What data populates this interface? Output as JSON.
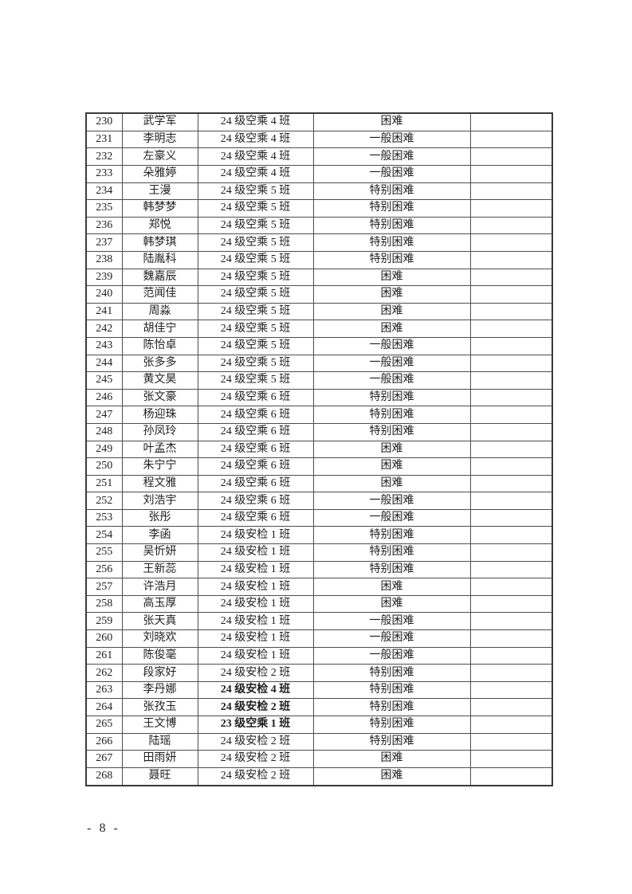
{
  "page": {
    "number_label": "- 8 -"
  },
  "table": {
    "rows": [
      {
        "num": "230",
        "name": "武学军",
        "cls": "24 级空乘 4 班",
        "level": "困难",
        "note": ""
      },
      {
        "num": "231",
        "name": "李明志",
        "cls": "24 级空乘 4 班",
        "level": "一般困难",
        "note": ""
      },
      {
        "num": "232",
        "name": "左豪义",
        "cls": "24 级空乘 4 班",
        "level": "一般困难",
        "note": ""
      },
      {
        "num": "233",
        "name": "朵雅婷",
        "cls": "24 级空乘 4 班",
        "level": "一般困难",
        "note": ""
      },
      {
        "num": "234",
        "name": "王漫",
        "cls": "24 级空乘 5 班",
        "level": "特别困难",
        "note": ""
      },
      {
        "num": "235",
        "name": "韩梦梦",
        "cls": "24 级空乘 5 班",
        "level": "特别困难",
        "note": ""
      },
      {
        "num": "236",
        "name": "郑悦",
        "cls": "24 级空乘 5 班",
        "level": "特别困难",
        "note": ""
      },
      {
        "num": "237",
        "name": "韩梦琪",
        "cls": "24 级空乘 5 班",
        "level": "特别困难",
        "note": ""
      },
      {
        "num": "238",
        "name": "陆胤科",
        "cls": "24 级空乘 5 班",
        "level": "特别困难",
        "note": ""
      },
      {
        "num": "239",
        "name": "魏嘉辰",
        "cls": "24 级空乘 5 班",
        "level": "困难",
        "note": ""
      },
      {
        "num": "240",
        "name": "范闻佳",
        "cls": "24 级空乘 5 班",
        "level": "困难",
        "note": ""
      },
      {
        "num": "241",
        "name": "周淼",
        "cls": "24 级空乘 5 班",
        "level": "困难",
        "note": ""
      },
      {
        "num": "242",
        "name": "胡佳宁",
        "cls": "24 级空乘 5 班",
        "level": "困难",
        "note": ""
      },
      {
        "num": "243",
        "name": "陈怡卓",
        "cls": "24 级空乘 5 班",
        "level": "一般困难",
        "note": ""
      },
      {
        "num": "244",
        "name": "张多多",
        "cls": "24 级空乘 5 班",
        "level": "一般困难",
        "note": ""
      },
      {
        "num": "245",
        "name": "黄文昊",
        "cls": "24 级空乘 5 班",
        "level": "一般困难",
        "note": ""
      },
      {
        "num": "246",
        "name": "张文豪",
        "cls": "24 级空乘 6 班",
        "level": "特别困难",
        "note": ""
      },
      {
        "num": "247",
        "name": "杨迎珠",
        "cls": "24 级空乘 6 班",
        "level": "特别困难",
        "note": ""
      },
      {
        "num": "248",
        "name": "孙凤玲",
        "cls": "24 级空乘 6 班",
        "level": "特别困难",
        "note": ""
      },
      {
        "num": "249",
        "name": "叶孟杰",
        "cls": "24 级空乘 6 班",
        "level": "困难",
        "note": ""
      },
      {
        "num": "250",
        "name": "朱宁宁",
        "cls": "24 级空乘 6 班",
        "level": "困难",
        "note": ""
      },
      {
        "num": "251",
        "name": "程文雅",
        "cls": "24 级空乘 6 班",
        "level": "困难",
        "note": ""
      },
      {
        "num": "252",
        "name": "刘浩宇",
        "cls": "24 级空乘 6 班",
        "level": "一般困难",
        "note": ""
      },
      {
        "num": "253",
        "name": "张彤",
        "cls": "24 级空乘 6 班",
        "level": "一般困难",
        "note": ""
      },
      {
        "num": "254",
        "name": "李函",
        "cls": "24 级安检 1 班",
        "level": "特别困难",
        "note": ""
      },
      {
        "num": "255",
        "name": "吴忻妍",
        "cls": "24 级安检 1 班",
        "level": "特别困难",
        "note": ""
      },
      {
        "num": "256",
        "name": "王新蕊",
        "cls": "24 级安检 1 班",
        "level": "特别困难",
        "note": ""
      },
      {
        "num": "257",
        "name": "许浩月",
        "cls": "24 级安检 1 班",
        "level": "困难",
        "note": ""
      },
      {
        "num": "258",
        "name": "高玉厚",
        "cls": "24 级安检 1 班",
        "level": "困难",
        "note": ""
      },
      {
        "num": "259",
        "name": "张天真",
        "cls": "24 级安检 1 班",
        "level": "一般困难",
        "note": ""
      },
      {
        "num": "260",
        "name": "刘晓欢",
        "cls": "24 级安检 1 班",
        "level": "一般困难",
        "note": ""
      },
      {
        "num": "261",
        "name": "陈俊毫",
        "cls": "24 级安检 1 班",
        "level": "一般困难",
        "note": ""
      },
      {
        "num": "262",
        "name": "段家好",
        "cls": "24 级安检 2 班",
        "level": "特别困难",
        "note": ""
      },
      {
        "num": "263",
        "name": "李丹娜",
        "cls": "24 级安检 4 班",
        "level": "特别困难",
        "note": "",
        "cls_bold": true
      },
      {
        "num": "264",
        "name": "张孜玉",
        "cls": "24 级安检 2 班",
        "level": "特别困难",
        "note": "",
        "cls_bold": true
      },
      {
        "num": "265",
        "name": "王文博",
        "cls": "23 级空乘 1 班",
        "level": "特别困难",
        "note": "",
        "cls_bold": true
      },
      {
        "num": "266",
        "name": "陆瑶",
        "cls": "24 级安检 2 班",
        "level": "特别困难",
        "note": ""
      },
      {
        "num": "267",
        "name": "田雨妍",
        "cls": "24 级安检 2 班",
        "level": "困难",
        "note": ""
      },
      {
        "num": "268",
        "name": "聂旺",
        "cls": "24 级安检 2 班",
        "level": "困难",
        "note": ""
      }
    ]
  }
}
